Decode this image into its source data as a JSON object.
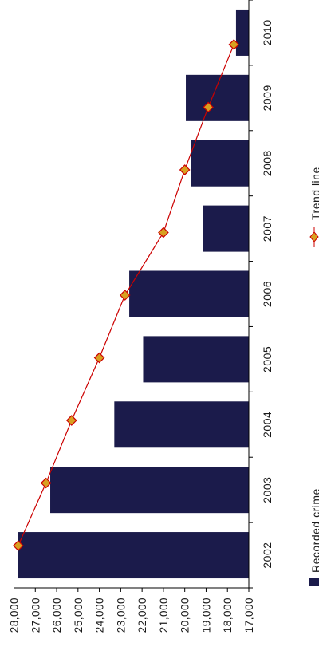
{
  "chart_data": {
    "type": "bar",
    "orientation": "rotated-90-ccw",
    "categories": [
      "2002",
      "2003",
      "2004",
      "2005",
      "2006",
      "2007",
      "2008",
      "2009",
      "2010"
    ],
    "series": [
      {
        "name": "Recorded crime",
        "kind": "bar",
        "color": "#1b1b4b",
        "values": [
          27800,
          26300,
          23300,
          21950,
          22600,
          19150,
          19700,
          19950,
          17600
        ]
      },
      {
        "name": "Trend line",
        "kind": "line",
        "color": "#cc0000",
        "marker_color": "#d8a020",
        "values": [
          27800,
          26500,
          25300,
          24000,
          22800,
          21000,
          20000,
          18900,
          17700
        ]
      }
    ],
    "yticks": [
      "17,000",
      "18,000",
      "19,000",
      "20,000",
      "21,000",
      "22,000",
      "23,000",
      "24,000",
      "25,000",
      "26,000",
      "27,000",
      "28,000"
    ],
    "ylim": [
      17000,
      28000
    ],
    "legend": {
      "position": "right",
      "entries": [
        "Recorded crime",
        "Trend line"
      ]
    },
    "grid": false
  }
}
